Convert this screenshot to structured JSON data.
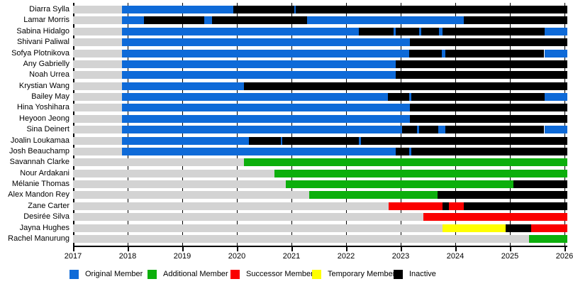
{
  "chart_data": {
    "type": "bar",
    "variant": "membership-timeline-gantt",
    "title": "",
    "xlabel": "",
    "ylabel": "",
    "grid": "vertical-year-lines",
    "legend_position": "bottom",
    "axis": {
      "min": 2017,
      "edge": 2026.05,
      "ticks": [
        "2017",
        "2018",
        "2019",
        "2020",
        "2021",
        "2022",
        "2023",
        "2024",
        "2025",
        "2026"
      ]
    },
    "colors": {
      "original": "#0E6AD8",
      "additional": "#0CAF0C",
      "successor": "#FA0000",
      "temporary": "#FFFF00",
      "inactive": "#000000",
      "none": "#D3D3D3"
    },
    "legend": [
      {
        "key": "original",
        "label": "Original Member"
      },
      {
        "key": "additional",
        "label": "Additional Member"
      },
      {
        "key": "successor",
        "label": "Successor Member"
      },
      {
        "key": "temporary",
        "label": "Temporary Member"
      },
      {
        "key": "inactive",
        "label": "Inactive"
      }
    ],
    "rows": [
      {
        "name": "Diarra Sylla",
        "segments": [
          [
            "none",
            2017,
            2017.89
          ],
          [
            "original",
            2017.89,
            2019.93
          ],
          [
            "inactive",
            2019.93,
            2021.05
          ],
          [
            "original",
            2021.05,
            2021.08
          ],
          [
            "inactive",
            2021.08,
            2026.05
          ]
        ]
      },
      {
        "name": "Lamar Morris",
        "segments": [
          [
            "none",
            2017,
            2017.89
          ],
          [
            "original",
            2017.89,
            2018.3
          ],
          [
            "inactive",
            2018.3,
            2019.4
          ],
          [
            "original",
            2019.4,
            2019.55
          ],
          [
            "inactive",
            2019.55,
            2021.29
          ],
          [
            "original",
            2021.29,
            2024.16
          ],
          [
            "inactive",
            2024.16,
            2026.05
          ]
        ]
      },
      {
        "name": "Sabina Hidalgo",
        "segments": [
          [
            "none",
            2017,
            2017.89
          ],
          [
            "original",
            2017.89,
            2022.24
          ],
          [
            "inactive",
            2022.24,
            2022.87
          ],
          [
            "original",
            2022.87,
            2022.91
          ],
          [
            "inactive",
            2022.91,
            2023.34
          ],
          [
            "original",
            2023.34,
            2023.38
          ],
          [
            "inactive",
            2023.38,
            2023.7
          ],
          [
            "original",
            2023.7,
            2023.77
          ],
          [
            "inactive",
            2023.77,
            2025.63
          ],
          [
            "original",
            2025.63,
            2026.05
          ]
        ]
      },
      {
        "name": "Shivani Paliwal",
        "segments": [
          [
            "none",
            2017,
            2017.89
          ],
          [
            "original",
            2017.89,
            2023.17
          ],
          [
            "inactive",
            2023.17,
            2026.05
          ]
        ]
      },
      {
        "name": "Sofya Plotnikova",
        "segments": [
          [
            "none",
            2017,
            2017.89
          ],
          [
            "original",
            2017.89,
            2023.15
          ],
          [
            "inactive",
            2023.15,
            2023.75
          ],
          [
            "original",
            2023.75,
            2023.82
          ],
          [
            "inactive",
            2023.82,
            2025.63
          ],
          [
            "original",
            2025.63,
            2026.05
          ]
        ]
      },
      {
        "name": "Any Gabrielly",
        "segments": [
          [
            "none",
            2017,
            2017.89
          ],
          [
            "original",
            2017.89,
            2022.91
          ],
          [
            "inactive",
            2022.91,
            2026.05
          ]
        ]
      },
      {
        "name": "Noah Urrea",
        "segments": [
          [
            "none",
            2017,
            2017.89
          ],
          [
            "original",
            2017.89,
            2022.91
          ],
          [
            "inactive",
            2022.91,
            2026.05
          ]
        ]
      },
      {
        "name": "Krystian Wang",
        "segments": [
          [
            "none",
            2017,
            2017.89
          ],
          [
            "original",
            2017.89,
            2020.13
          ],
          [
            "inactive",
            2020.13,
            2026.05
          ]
        ]
      },
      {
        "name": "Bailey May",
        "segments": [
          [
            "none",
            2017,
            2017.89
          ],
          [
            "original",
            2017.89,
            2022.77
          ],
          [
            "inactive",
            2022.77,
            2023.16
          ],
          [
            "original",
            2023.16,
            2023.19
          ],
          [
            "inactive",
            2023.19,
            2025.63
          ],
          [
            "original",
            2025.63,
            2026.05
          ]
        ]
      },
      {
        "name": "Hina Yoshihara",
        "segments": [
          [
            "none",
            2017,
            2017.89
          ],
          [
            "original",
            2017.89,
            2023.17
          ],
          [
            "inactive",
            2023.17,
            2026.05
          ]
        ]
      },
      {
        "name": "Heyoon Jeong",
        "segments": [
          [
            "none",
            2017,
            2017.89
          ],
          [
            "original",
            2017.89,
            2023.17
          ],
          [
            "inactive",
            2023.17,
            2026.05
          ]
        ]
      },
      {
        "name": "Sina Deinert",
        "segments": [
          [
            "none",
            2017,
            2017.89
          ],
          [
            "original",
            2017.89,
            2023.02
          ],
          [
            "inactive",
            2023.02,
            2023.3
          ],
          [
            "original",
            2023.3,
            2023.34
          ],
          [
            "inactive",
            2023.34,
            2023.69
          ],
          [
            "original",
            2023.69,
            2023.82
          ],
          [
            "inactive",
            2023.82,
            2025.63
          ],
          [
            "original",
            2025.63,
            2026.05
          ]
        ]
      },
      {
        "name": "Joalin Loukamaa",
        "segments": [
          [
            "none",
            2017,
            2017.89
          ],
          [
            "original",
            2017.89,
            2020.22
          ],
          [
            "inactive",
            2020.22,
            2020.8
          ],
          [
            "original",
            2020.8,
            2020.83
          ],
          [
            "inactive",
            2020.83,
            2022.24
          ],
          [
            "original",
            2022.24,
            2022.27
          ],
          [
            "inactive",
            2022.27,
            2026.05
          ]
        ]
      },
      {
        "name": "Josh Beauchamp",
        "segments": [
          [
            "none",
            2017,
            2017.89
          ],
          [
            "original",
            2017.89,
            2022.91
          ],
          [
            "inactive",
            2022.91,
            2023.16
          ],
          [
            "original",
            2023.16,
            2023.19
          ],
          [
            "inactive",
            2023.19,
            2026.05
          ]
        ]
      },
      {
        "name": "Savannah Clarke",
        "segments": [
          [
            "none",
            2017,
            2020.13
          ],
          [
            "additional",
            2020.13,
            2026.05
          ]
        ]
      },
      {
        "name": "Nour Ardakani",
        "segments": [
          [
            "none",
            2017,
            2020.69
          ],
          [
            "additional",
            2020.69,
            2026.05
          ]
        ]
      },
      {
        "name": "Mélanie Thomas",
        "segments": [
          [
            "none",
            2017,
            2020.89
          ],
          [
            "additional",
            2020.89,
            2025.07
          ],
          [
            "inactive",
            2025.07,
            2026.05
          ]
        ]
      },
      {
        "name": "Alex Mandon Rey",
        "segments": [
          [
            "none",
            2017,
            2021.32
          ],
          [
            "additional",
            2021.32,
            2023.67
          ],
          [
            "inactive",
            2023.67,
            2026.05
          ]
        ]
      },
      {
        "name": "Zane Carter",
        "segments": [
          [
            "none",
            2017,
            2022.78
          ],
          [
            "successor",
            2022.78,
            2023.77
          ],
          [
            "inactive",
            2023.77,
            2023.88
          ],
          [
            "successor",
            2023.88,
            2024.16
          ],
          [
            "inactive",
            2024.16,
            2026.05
          ]
        ]
      },
      {
        "name": "Desirée Silva",
        "segments": [
          [
            "none",
            2017,
            2023.41
          ],
          [
            "successor",
            2023.41,
            2026.05
          ]
        ]
      },
      {
        "name": "Jayna Hughes",
        "segments": [
          [
            "none",
            2017,
            2023.77
          ],
          [
            "temporary",
            2023.77,
            2024.92
          ],
          [
            "inactive",
            2024.92,
            2025.39
          ],
          [
            "successor",
            2025.39,
            2026.05
          ]
        ]
      },
      {
        "name": "Rachel Manurung",
        "segments": [
          [
            "none",
            2017,
            2025.35
          ],
          [
            "additional",
            2025.35,
            2026.05
          ]
        ]
      }
    ]
  }
}
